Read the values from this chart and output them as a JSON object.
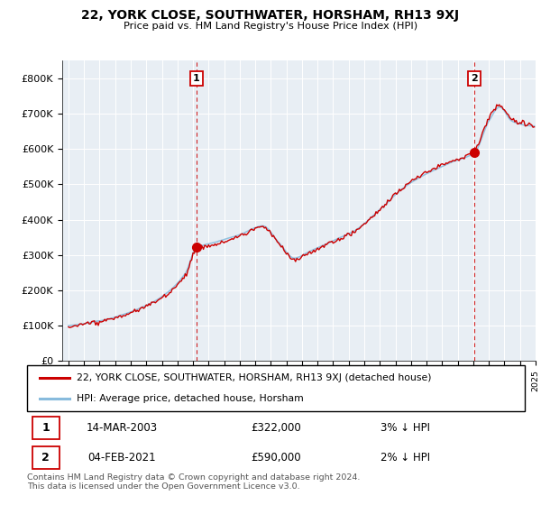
{
  "title": "22, YORK CLOSE, SOUTHWATER, HORSHAM, RH13 9XJ",
  "subtitle": "Price paid vs. HM Land Registry's House Price Index (HPI)",
  "ylim": [
    0,
    850000
  ],
  "yticks": [
    0,
    100000,
    200000,
    300000,
    400000,
    500000,
    600000,
    700000,
    800000
  ],
  "ytick_labels": [
    "£0",
    "£100K",
    "£200K",
    "£300K",
    "£400K",
    "£500K",
    "£600K",
    "£700K",
    "£800K"
  ],
  "legend_line1": "22, YORK CLOSE, SOUTHWATER, HORSHAM, RH13 9XJ (detached house)",
  "legend_line2": "HPI: Average price, detached house, Horsham",
  "sale1_date": "14-MAR-2003",
  "sale1_price": "£322,000",
  "sale1_hpi": "3% ↓ HPI",
  "sale1_x": 2003.2,
  "sale1_y": 322000,
  "sale2_date": "04-FEB-2021",
  "sale2_price": "£590,000",
  "sale2_hpi": "2% ↓ HPI",
  "sale2_x": 2021.08,
  "sale2_y": 590000,
  "footer": "Contains HM Land Registry data © Crown copyright and database right 2024.\nThis data is licensed under the Open Government Licence v3.0.",
  "line_color_red": "#cc0000",
  "line_color_blue": "#88bbdd",
  "bg_color": "#e8eef4",
  "grid_color": "#ffffff",
  "vline_color": "#cc0000",
  "box_color": "#cc0000",
  "xlim_left": 1994.6,
  "xlim_right": 2025.0,
  "xtick_start": 1995,
  "xtick_end": 2025
}
